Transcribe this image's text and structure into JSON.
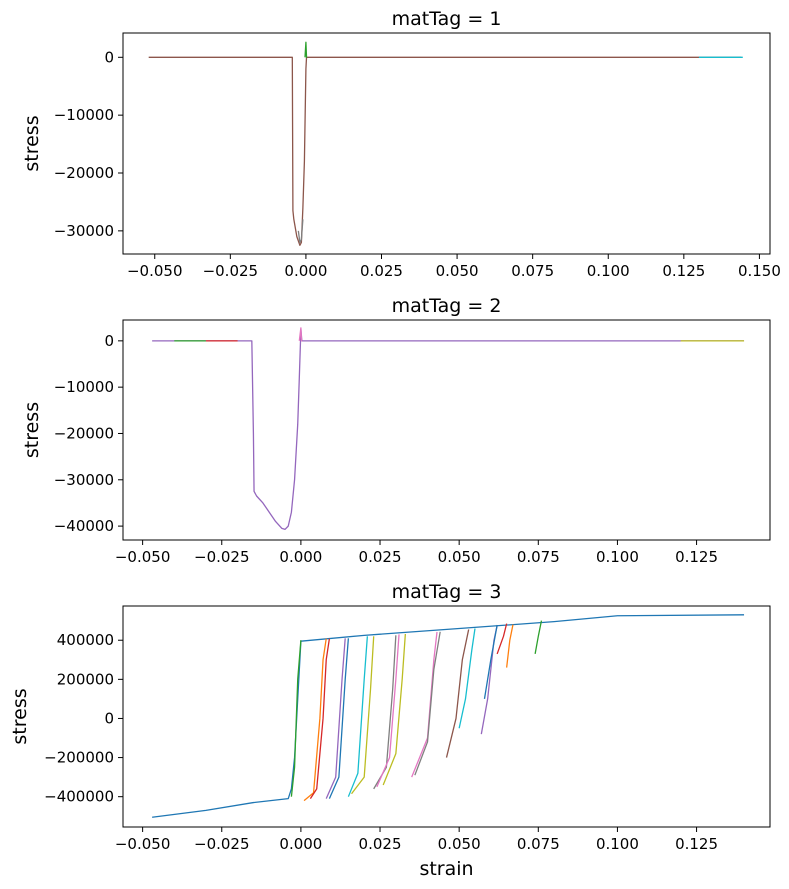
{
  "chart_data": [
    {
      "type": "line",
      "title": "matTag = 1",
      "xlabel": "",
      "ylabel": "stress",
      "xlim": [
        -0.0605,
        0.1535
      ],
      "ylim": [
        -34000,
        4200
      ],
      "xticks": [
        -0.05,
        -0.025,
        0.0,
        0.025,
        0.05,
        0.075,
        0.1,
        0.125,
        0.15
      ],
      "xtick_labels": [
        "−0.050",
        "−0.025",
        "0.000",
        "0.025",
        "0.050",
        "0.075",
        "0.100",
        "0.125",
        "0.150"
      ],
      "yticks": [
        0,
        -10000,
        -20000,
        -30000
      ],
      "ytick_labels": [
        "0",
        "−10000",
        "−20000",
        "−30000"
      ],
      "grid": false,
      "series": [
        {
          "color": "#8c564b",
          "x": [
            -0.052,
            -0.0045,
            -0.0043,
            -0.004,
            -0.003,
            -0.002,
            -0.0015,
            -0.001,
            -0.0005,
            0.0,
            0.0002,
            0.0005,
            0.144
          ],
          "y": [
            0,
            0,
            -26500,
            -28000,
            -31000,
            -32500,
            -32000,
            -26000,
            -18000,
            -2000,
            0,
            0,
            0
          ]
        },
        {
          "color": "#2ca02c",
          "x": [
            -0.0003,
            0.0,
            0.0002,
            0.0004
          ],
          "y": [
            0,
            2600,
            0,
            0
          ]
        },
        {
          "color": "#7f7f7f",
          "x": [
            -0.0025,
            -0.002,
            -0.0015,
            -0.001
          ],
          "y": [
            -30000,
            -32000,
            -31500,
            -28000
          ]
        },
        {
          "color": "#17becf",
          "x": [
            0.13,
            0.1445
          ],
          "y": [
            0,
            0
          ]
        }
      ]
    },
    {
      "type": "line",
      "title": "matTag = 2",
      "xlabel": "",
      "ylabel": "stress",
      "xlim": [
        -0.0562,
        0.1482
      ],
      "ylim": [
        -43000,
        4500
      ],
      "xticks": [
        -0.05,
        -0.025,
        0.0,
        0.025,
        0.05,
        0.075,
        0.1,
        0.125
      ],
      "xtick_labels": [
        "−0.050",
        "−0.025",
        "0.000",
        "0.025",
        "0.050",
        "0.075",
        "0.100",
        "0.125"
      ],
      "yticks": [
        0,
        -10000,
        -20000,
        -30000,
        -40000
      ],
      "ytick_labels": [
        "0",
        "−10000",
        "−20000",
        "−30000",
        "−40000"
      ],
      "grid": false,
      "series": [
        {
          "color": "#9467bd",
          "x": [
            -0.047,
            -0.0155,
            -0.015,
            -0.0148,
            -0.014,
            -0.012,
            -0.01,
            -0.008,
            -0.006,
            -0.005,
            -0.004,
            -0.003,
            -0.002,
            -0.001,
            -0.0005,
            0.0,
            0.0003,
            0.14
          ],
          "y": [
            0,
            0,
            -20000,
            -32500,
            -33500,
            -35000,
            -37000,
            -39000,
            -40500,
            -40700,
            -40000,
            -37000,
            -30000,
            -18000,
            -8000,
            2500,
            0,
            0
          ]
        },
        {
          "color": "#e377c2",
          "x": [
            -0.0005,
            0.0,
            0.0002,
            0.0004
          ],
          "y": [
            0,
            2800,
            0,
            0
          ]
        },
        {
          "color": "#2ca02c",
          "x": [
            -0.04,
            -0.03
          ],
          "y": [
            0,
            0
          ]
        },
        {
          "color": "#d62728",
          "x": [
            -0.03,
            -0.02
          ],
          "y": [
            0,
            0
          ]
        },
        {
          "color": "#bcbd22",
          "x": [
            0.12,
            0.14
          ],
          "y": [
            0,
            0
          ]
        }
      ]
    },
    {
      "type": "line",
      "title": "matTag = 3",
      "xlabel": "strain",
      "ylabel": "stress",
      "xlim": [
        -0.0562,
        0.1482
      ],
      "ylim": [
        -555000,
        575000
      ],
      "xticks": [
        -0.05,
        -0.025,
        0.0,
        0.025,
        0.05,
        0.075,
        0.1,
        0.125
      ],
      "xtick_labels": [
        "−0.050",
        "−0.025",
        "0.000",
        "0.025",
        "0.050",
        "0.075",
        "0.100",
        "0.125"
      ],
      "yticks": [
        400000,
        200000,
        0,
        -200000,
        -400000
      ],
      "ytick_labels": [
        "400000",
        "200000",
        "0",
        "−200000",
        "−400000"
      ],
      "grid": false,
      "series": [
        {
          "color": "#1f77b4",
          "x": [
            -0.047,
            -0.03,
            -0.015,
            -0.004,
            -0.003,
            -0.002,
            -0.001,
            0.0,
            0.02,
            0.05,
            0.08,
            0.1,
            0.14
          ],
          "y": [
            -505000,
            -470000,
            -430000,
            -410000,
            -360000,
            -200000,
            100000,
            395000,
            425000,
            460000,
            495000,
            525000,
            530000
          ]
        },
        {
          "color": "#2ca02c",
          "x": [
            -0.003,
            -0.002,
            -0.001,
            0.0
          ],
          "y": [
            -400000,
            -250000,
            200000,
            400000
          ]
        },
        {
          "color": "#ff7f0e",
          "x": [
            0.001,
            0.004,
            0.006,
            0.007,
            0.008
          ],
          "y": [
            -420000,
            -380000,
            0,
            300000,
            408000
          ]
        },
        {
          "color": "#d62728",
          "x": [
            0.003,
            0.005,
            0.007,
            0.008,
            0.009
          ],
          "y": [
            -410000,
            -360000,
            0,
            300000,
            408000
          ]
        },
        {
          "color": "#9467bd",
          "x": [
            0.008,
            0.011,
            0.013,
            0.014
          ],
          "y": [
            -410000,
            -300000,
            200000,
            410000
          ]
        },
        {
          "color": "#1f77b4",
          "x": [
            0.009,
            0.012,
            0.014,
            0.015
          ],
          "y": [
            -410000,
            -300000,
            200000,
            410000
          ]
        },
        {
          "color": "#17becf",
          "x": [
            0.015,
            0.018,
            0.02,
            0.021
          ],
          "y": [
            -400000,
            -280000,
            200000,
            420000
          ]
        },
        {
          "color": "#bcbd22",
          "x": [
            0.016,
            0.02,
            0.022,
            0.023
          ],
          "y": [
            -385000,
            -300000,
            150000,
            420000
          ]
        },
        {
          "color": "#7f7f7f",
          "x": [
            0.023,
            0.027,
            0.029,
            0.03
          ],
          "y": [
            -360000,
            -250000,
            150000,
            425000
          ]
        },
        {
          "color": "#e377c2",
          "x": [
            0.024,
            0.028,
            0.03,
            0.031
          ],
          "y": [
            -350000,
            -200000,
            200000,
            430000
          ]
        },
        {
          "color": "#bcbd22",
          "x": [
            0.026,
            0.03,
            0.032,
            0.033
          ],
          "y": [
            -340000,
            -180000,
            200000,
            432000
          ]
        },
        {
          "color": "#e377c2",
          "x": [
            0.035,
            0.04,
            0.042,
            0.043
          ],
          "y": [
            -300000,
            -100000,
            300000,
            442000
          ]
        },
        {
          "color": "#7f7f7f",
          "x": [
            0.036,
            0.04,
            0.042,
            0.044
          ],
          "y": [
            -290000,
            -120000,
            250000,
            443000
          ]
        },
        {
          "color": "#8c564b",
          "x": [
            0.046,
            0.049,
            0.051,
            0.053
          ],
          "y": [
            -200000,
            0,
            300000,
            455000
          ]
        },
        {
          "color": "#17becf",
          "x": [
            0.05,
            0.052,
            0.054,
            0.055
          ],
          "y": [
            -50000,
            100000,
            350000,
            460000
          ]
        },
        {
          "color": "#9467bd",
          "x": [
            0.057,
            0.059,
            0.061,
            0.062
          ],
          "y": [
            -80000,
            100000,
            400000,
            475000
          ]
        },
        {
          "color": "#1f77b4",
          "x": [
            0.058,
            0.06,
            0.062
          ],
          "y": [
            100000,
            300000,
            478000
          ]
        },
        {
          "color": "#ff7f0e",
          "x": [
            0.065,
            0.066,
            0.067
          ],
          "y": [
            260000,
            400000,
            480000
          ]
        },
        {
          "color": "#d62728",
          "x": [
            0.062,
            0.064,
            0.065
          ],
          "y": [
            330000,
            420000,
            485000
          ]
        },
        {
          "color": "#2ca02c",
          "x": [
            0.074,
            0.075,
            0.076
          ],
          "y": [
            330000,
            420000,
            500000
          ]
        }
      ]
    }
  ]
}
